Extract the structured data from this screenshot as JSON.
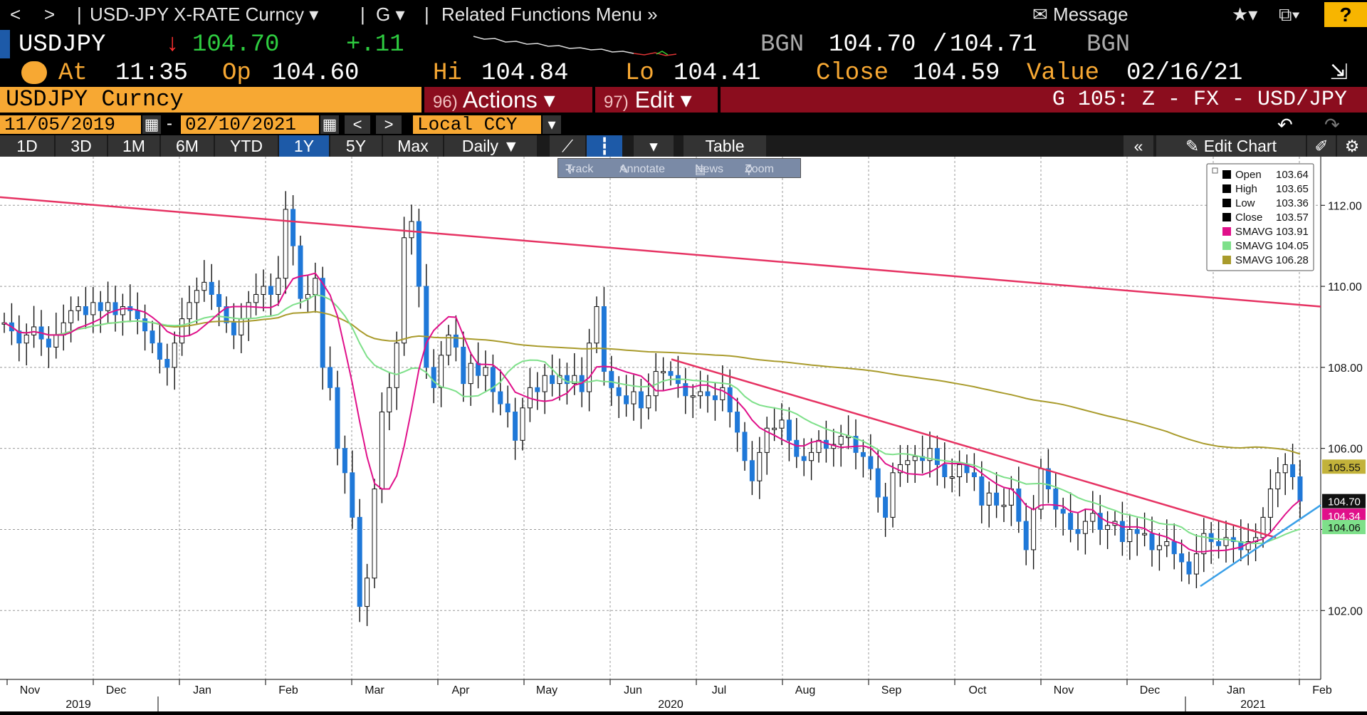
{
  "toolbar": {
    "back": "<",
    "forward": ">",
    "security_menu": "USD-JPY X-RATE Curncy",
    "g_menu": "G",
    "related": "Related Functions Menu",
    "message": "Message",
    "help": "?"
  },
  "quote": {
    "ticker": "USDJPY",
    "last": "104.70",
    "change": "+.11",
    "source": "BGN",
    "bid": "104.70",
    "ask": "104.71",
    "source2": "BGN",
    "at_label": "At",
    "time": "11:35",
    "op_label": "Op",
    "open": "104.60",
    "hi_label": "Hi",
    "high": "104.84",
    "lo_label": "Lo",
    "low": "104.41",
    "close_label": "Close",
    "close": "104.59",
    "value_label": "Value",
    "value_date": "02/16/21"
  },
  "header": {
    "security": "USDJPY Curncy",
    "actions_num": "96)",
    "actions": "Actions",
    "edit_num": "97)",
    "edit": "Edit",
    "page": "G 105: Z - FX - USD/JPY"
  },
  "range": {
    "start": "11/05/2019",
    "dash": "-",
    "end": "02/10/2021",
    "currency": "Local CCY"
  },
  "periods": [
    "1D",
    "3D",
    "1M",
    "6M",
    "YTD",
    "1Y",
    "5Y",
    "Max"
  ],
  "active_period": "1Y",
  "frequency": "Daily",
  "table_label": "Table",
  "edit_chart": "Edit Chart",
  "tools": {
    "track": "Track",
    "annotate": "Annotate",
    "news": "News",
    "zoom": "Zoom"
  },
  "chart_data": {
    "type": "line",
    "x_months": [
      "Nov",
      "Dec",
      "Jan",
      "Feb",
      "Mar",
      "Apr",
      "May",
      "Jun",
      "Jul",
      "Aug",
      "Sep",
      "Oct",
      "Nov",
      "Dec",
      "Jan",
      "Feb"
    ],
    "x_years": [
      "2019",
      "2020",
      "2021"
    ],
    "ylim": [
      100.3,
      113.2
    ],
    "y_ticks": [
      "102.00",
      "104.00",
      "106.00",
      "108.00",
      "110.00",
      "112.00"
    ],
    "price_labels": [
      {
        "value": "105.55",
        "color": "#c2b23a"
      },
      {
        "value": "104.70",
        "color": "#111111"
      },
      {
        "value": "104.34",
        "color": "#e0108a"
      },
      {
        "value": "104.06",
        "color": "#7ee08a"
      }
    ],
    "legend": [
      {
        "name": "Open",
        "value": "103.64",
        "color": "#000000"
      },
      {
        "name": "High",
        "value": "103.65",
        "color": "#000000"
      },
      {
        "name": "Low",
        "value": "103.36",
        "color": "#000000"
      },
      {
        "name": "Close",
        "value": "103.57",
        "color": "#000000"
      },
      {
        "name": "SMAVG",
        "value": "103.91",
        "color": "#e0108a"
      },
      {
        "name": "SMAVG",
        "value": "104.05",
        "color": "#7ee08a"
      },
      {
        "name": "SMAVG",
        "value": "106.28",
        "color": "#a99b2c"
      }
    ],
    "closes": [
      109.1,
      108.9,
      108.6,
      108.8,
      109.0,
      108.7,
      108.5,
      108.8,
      109.1,
      109.4,
      109.5,
      109.3,
      109.6,
      109.4,
      109.6,
      109.3,
      109.5,
      109.4,
      109.2,
      108.9,
      108.6,
      108.2,
      108.0,
      108.6,
      109.2,
      109.6,
      109.9,
      110.1,
      109.8,
      109.5,
      109.1,
      108.8,
      109.2,
      109.6,
      109.8,
      110.0,
      109.8,
      110.2,
      111.9,
      111.0,
      109.7,
      109.8,
      110.2,
      108.0,
      107.5,
      106.0,
      105.4,
      104.3,
      102.1,
      102.8,
      105.0,
      106.9,
      107.5,
      108.6,
      111.2,
      111.6,
      110.0,
      108.0,
      107.5,
      108.3,
      108.8,
      108.5,
      107.6,
      108.1,
      107.8,
      108.0,
      107.4,
      107.1,
      106.9,
      106.2,
      107.0,
      107.5,
      107.4,
      107.8,
      107.6,
      107.8,
      107.6,
      107.8,
      107.4,
      108.6,
      109.5,
      107.9,
      107.5,
      107.3,
      107.1,
      107.4,
      107.0,
      107.3,
      107.9,
      107.9,
      107.8,
      107.6,
      107.3,
      107.3,
      107.4,
      107.3,
      107.2,
      107.5,
      106.9,
      106.4,
      105.7,
      105.2,
      105.9,
      106.5,
      106.5,
      106.7,
      106.2,
      105.8,
      105.7,
      105.9,
      106.2,
      106.0,
      106.1,
      106.3,
      106.3,
      105.9,
      105.8,
      105.5,
      104.8,
      104.3,
      105.4,
      105.6,
      105.7,
      105.8,
      105.7,
      106.0,
      105.6,
      105.3,
      105.3,
      105.6,
      105.4,
      105.3,
      104.6,
      104.9,
      104.6,
      104.6,
      105.0,
      104.2,
      103.5,
      104.5,
      105.5,
      105.0,
      104.5,
      104.4,
      104.0,
      103.9,
      104.2,
      104.4,
      104.0,
      104.1,
      104.2,
      103.7,
      104.0,
      103.9,
      103.9,
      103.5,
      103.6,
      103.7,
      103.4,
      103.2,
      102.9,
      103.4,
      103.9,
      103.7,
      103.6,
      103.8,
      103.7,
      103.5,
      103.7,
      103.8,
      104.3,
      105.0,
      105.4,
      105.6,
      105.3,
      104.7
    ]
  }
}
